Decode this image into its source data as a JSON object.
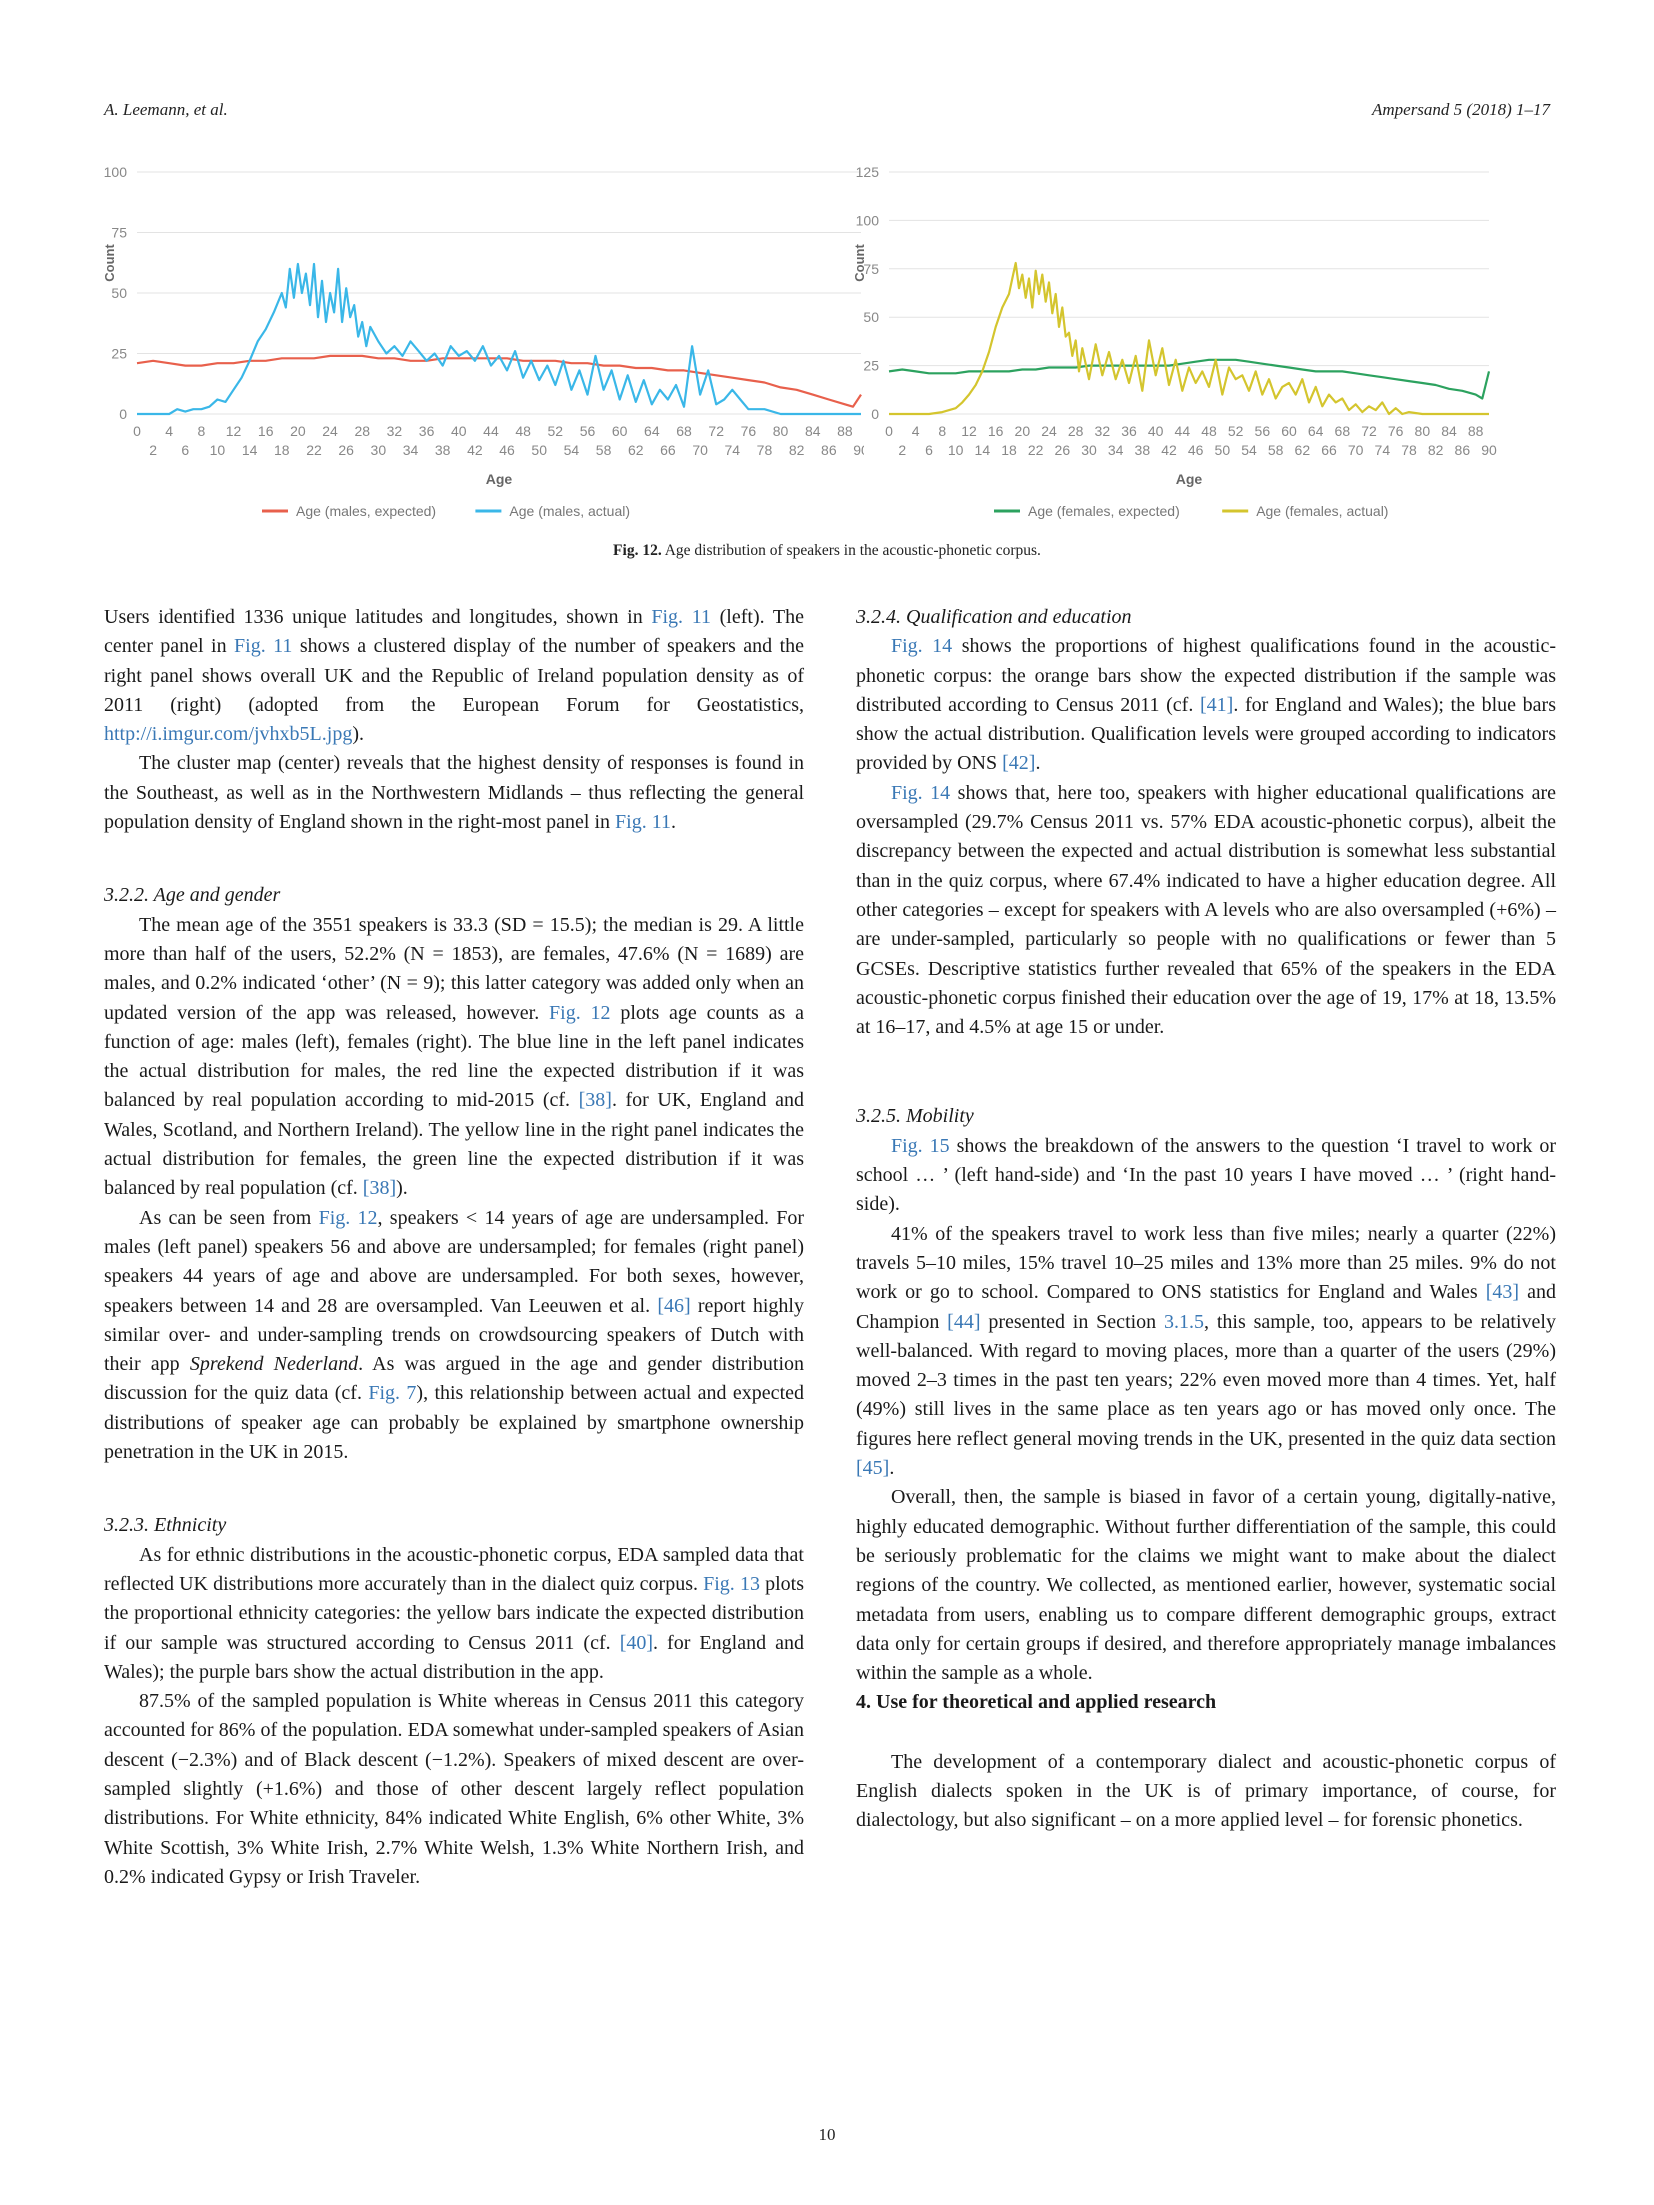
{
  "header": {
    "left": "A. Leemann, et al.",
    "right": "Ampersand 5 (2018) 1–17"
  },
  "chart_data": [
    {
      "type": "line",
      "xlabel": "Age",
      "ylabel": "Count",
      "xlim": [
        0,
        90
      ],
      "ylim": [
        0,
        100
      ],
      "yticks": [
        0,
        25,
        50,
        75,
        100
      ],
      "xticks_top": [
        "0",
        "4",
        "8",
        "12",
        "16",
        "20",
        "24",
        "28",
        "32",
        "36",
        "40",
        "44",
        "48",
        "52",
        "56",
        "60",
        "64",
        "68",
        "72",
        "76",
        "80",
        "84",
        "88"
      ],
      "xticks_bottom": [
        "2",
        "6",
        "10",
        "14",
        "18",
        "22",
        "26",
        "30",
        "34",
        "38",
        "42",
        "46",
        "50",
        "54",
        "58",
        "62",
        "66",
        "70",
        "74",
        "78",
        "82",
        "86",
        "90"
      ],
      "grid": true,
      "legend_position": "bottom",
      "series": [
        {
          "name": "Age (males, expected)",
          "color": "#e8604c",
          "x": [
            0,
            2,
            4,
            6,
            8,
            10,
            12,
            14,
            16,
            18,
            20,
            22,
            24,
            26,
            28,
            30,
            32,
            34,
            36,
            38,
            40,
            42,
            44,
            46,
            48,
            50,
            52,
            54,
            56,
            58,
            60,
            62,
            64,
            66,
            68,
            70,
            72,
            74,
            76,
            78,
            80,
            82,
            84,
            86,
            88,
            89,
            90
          ],
          "y": [
            21,
            22,
            21,
            20,
            20,
            21,
            21,
            22,
            22,
            23,
            23,
            23,
            24,
            24,
            24,
            23,
            23,
            22,
            22,
            23,
            23,
            23,
            23,
            23,
            22,
            22,
            22,
            21,
            21,
            20,
            20,
            19,
            19,
            18,
            18,
            17,
            16,
            15,
            14,
            13,
            11,
            10,
            8,
            6,
            4,
            3,
            8
          ]
        },
        {
          "name": "Age (males, actual)",
          "color": "#3ab7e8",
          "x": [
            0,
            4,
            5,
            6,
            7,
            8,
            9,
            10,
            11,
            12,
            13,
            14,
            15,
            16,
            17,
            18,
            18.5,
            19,
            19.5,
            20,
            20.5,
            21,
            21.5,
            22,
            22.5,
            23,
            23.5,
            24,
            24.5,
            25,
            25.5,
            26,
            26.5,
            27,
            27.5,
            28,
            28.5,
            29,
            30,
            31,
            32,
            33,
            34,
            35,
            36,
            37,
            38,
            39,
            40,
            41,
            42,
            43,
            44,
            45,
            46,
            47,
            48,
            49,
            50,
            51,
            52,
            53,
            54,
            55,
            56,
            57,
            58,
            59,
            60,
            61,
            62,
            63,
            64,
            65,
            66,
            67,
            68,
            69,
            70,
            71,
            72,
            73,
            74,
            75,
            76,
            78,
            80,
            82,
            84,
            86,
            88,
            90
          ],
          "y": [
            0,
            0,
            2,
            1,
            2,
            2,
            3,
            6,
            5,
            10,
            15,
            22,
            30,
            35,
            42,
            50,
            44,
            60,
            48,
            62,
            50,
            58,
            45,
            62,
            40,
            55,
            38,
            50,
            42,
            60,
            38,
            52,
            40,
            45,
            32,
            38,
            28,
            36,
            30,
            25,
            28,
            24,
            30,
            26,
            22,
            25,
            20,
            28,
            24,
            26,
            22,
            28,
            20,
            24,
            18,
            26,
            15,
            22,
            14,
            20,
            12,
            22,
            10,
            18,
            8,
            24,
            10,
            18,
            6,
            16,
            5,
            14,
            4,
            10,
            6,
            12,
            3,
            28,
            8,
            18,
            4,
            6,
            10,
            6,
            2,
            2,
            0,
            0,
            0,
            0,
            0,
            0
          ]
        }
      ]
    },
    {
      "type": "line",
      "xlabel": "Age",
      "ylabel": "Count",
      "xlim": [
        0,
        90
      ],
      "ylim": [
        0,
        125
      ],
      "yticks": [
        0,
        25,
        50,
        75,
        100,
        125
      ],
      "xticks_top": [
        "0",
        "4",
        "8",
        "12",
        "16",
        "20",
        "24",
        "28",
        "32",
        "36",
        "40",
        "44",
        "48",
        "52",
        "56",
        "60",
        "64",
        "68",
        "72",
        "76",
        "80",
        "84",
        "88"
      ],
      "xticks_bottom": [
        "2",
        "6",
        "10",
        "14",
        "18",
        "22",
        "26",
        "30",
        "34",
        "38",
        "42",
        "46",
        "50",
        "54",
        "58",
        "62",
        "66",
        "70",
        "74",
        "78",
        "82",
        "86",
        "90"
      ],
      "grid": true,
      "legend_position": "bottom",
      "series": [
        {
          "name": "Age (females, expected)",
          "color": "#2ca25f",
          "x": [
            0,
            2,
            4,
            6,
            8,
            10,
            12,
            14,
            16,
            18,
            20,
            22,
            24,
            26,
            28,
            30,
            32,
            34,
            36,
            38,
            40,
            42,
            44,
            46,
            48,
            50,
            52,
            54,
            56,
            58,
            60,
            62,
            64,
            66,
            68,
            70,
            72,
            74,
            76,
            78,
            80,
            82,
            84,
            86,
            88,
            89,
            90
          ],
          "y": [
            22,
            23,
            22,
            21,
            21,
            21,
            22,
            22,
            22,
            22,
            23,
            23,
            24,
            24,
            24,
            25,
            25,
            25,
            25,
            25,
            25,
            25,
            26,
            27,
            28,
            28,
            28,
            27,
            26,
            25,
            24,
            23,
            22,
            22,
            22,
            21,
            20,
            19,
            18,
            17,
            16,
            15,
            13,
            12,
            10,
            8,
            22
          ]
        },
        {
          "name": "Age (females, actual)",
          "color": "#d4c52e",
          "x": [
            0,
            4,
            6,
            8,
            10,
            11,
            12,
            13,
            14,
            15,
            16,
            17,
            18,
            18.5,
            19,
            19.5,
            20,
            20.5,
            21,
            21.5,
            22,
            22.5,
            23,
            23.5,
            24,
            24.5,
            25,
            25.5,
            26,
            26.5,
            27,
            27.5,
            28,
            28.5,
            29,
            30,
            31,
            32,
            33,
            34,
            35,
            36,
            37,
            38,
            39,
            40,
            41,
            42,
            43,
            44,
            45,
            46,
            47,
            48,
            49,
            50,
            51,
            52,
            53,
            54,
            55,
            56,
            57,
            58,
            59,
            60,
            61,
            62,
            63,
            64,
            65,
            66,
            67,
            68,
            69,
            70,
            71,
            72,
            73,
            74,
            75,
            76,
            77,
            78,
            80,
            82,
            84,
            86,
            88,
            90
          ],
          "y": [
            0,
            0,
            0,
            1,
            3,
            6,
            10,
            15,
            22,
            32,
            45,
            55,
            62,
            70,
            78,
            65,
            72,
            60,
            70,
            55,
            74,
            62,
            72,
            58,
            68,
            52,
            62,
            45,
            55,
            40,
            42,
            30,
            38,
            22,
            34,
            18,
            36,
            20,
            32,
            18,
            28,
            16,
            30,
            12,
            38,
            20,
            34,
            15,
            28,
            12,
            24,
            16,
            22,
            14,
            28,
            10,
            24,
            18,
            20,
            12,
            22,
            10,
            18,
            8,
            14,
            16,
            10,
            18,
            6,
            14,
            4,
            10,
            6,
            8,
            2,
            5,
            1,
            4,
            2,
            6,
            0,
            3,
            0,
            1,
            0,
            0,
            0,
            0,
            0,
            0
          ]
        }
      ]
    }
  ],
  "figure": {
    "caption_label": "Fig. 12.",
    "caption_text": " Age distribution of speakers in the acoustic-phonetic corpus."
  },
  "left_column": {
    "p1": [
      "Users identified 1336 unique latitudes and longitudes, shown in ",
      "Fig. 11",
      " (left). The center panel in ",
      "Fig. 11",
      " shows a clustered display of the number of speakers and the right panel shows overall UK and the Republic of Ireland population density as of 2011 (right) (adopted from the European Forum for Geostatistics, ",
      "http://i.imgur.com/jvhxb5L.jpg",
      ")."
    ],
    "p2": [
      "The cluster map (center) reveals that the highest density of responses is found in the Southeast, as well as in the Northwestern Midlands – thus reflecting the general population density of England shown in the right-most panel in ",
      "Fig. 11",
      "."
    ],
    "h_age": "3.2.2. Age and gender",
    "p3": [
      "The mean age of the 3551 speakers is 33.3 (SD = 15.5); the median is 29. A little more than half of the users, 52.2% (N = 1853), are females, 47.6% (N = 1689) are males, and 0.2% indicated ‘other’ (N = 9); this latter category was added only when an updated version of the app was released, however. ",
      "Fig. 12",
      " plots age counts as a function of age: males (left), females (right). The blue line in the left panel indicates the actual distribution for males, the red line the expected distribution if it was balanced by real population according to mid-2015 (cf. ",
      "[38]",
      ". for UK, England and Wales, Scotland, and Northern Ireland). The yellow line in the right panel indicates the actual distribution for females, the green line the expected distribution if it was balanced by real population (cf. ",
      "[38]",
      ")."
    ],
    "p4": [
      "As can be seen from ",
      "Fig. 12",
      ", speakers < 14 years of age are undersampled. For males (left panel) speakers 56 and above are undersampled; for females (right panel) speakers 44 years of age and above are undersampled. For both sexes, however, speakers between 14 and 28 are oversampled. Van Leeuwen et al. ",
      "[46]",
      " report highly similar over- and under-sampling trends on crowdsourcing speakers of Dutch with their app ",
      "Sprekend Nederland",
      ". As was argued in the age and gender distribution discussion for the quiz data (cf. ",
      "Fig. 7",
      "), this relationship between actual and expected distributions of speaker age can probably be explained by smartphone ownership penetration in the UK in 2015."
    ],
    "h_eth": "3.2.3. Ethnicity",
    "p5": [
      "As for ethnic distributions in the acoustic-phonetic corpus, EDA sampled data that reflected UK distributions more accurately than in the dialect quiz corpus. ",
      "Fig. 13",
      " plots the proportional ethnicity categories: the yellow bars indicate the expected distribution if our sample was structured according to Census 2011 (cf. ",
      "[40]",
      ". for England and Wales); the purple bars show the actual distribution in the app."
    ],
    "p6": "87.5% of the sampled population is White whereas in Census 2011 this category accounted for 86% of the population. EDA somewhat under-sampled speakers of Asian descent (−2.3%) and of Black descent (−1.2%). Speakers of mixed descent are over-sampled slightly (+1.6%) and those of other descent largely reflect population distributions. For White ethnicity, 84% indicated White English, 6% other White, 3% White Scottish, 3% White Irish, 2.7% White Welsh, 1.3% White Northern Irish, and 0.2% indicated Gypsy or Irish Traveler."
  },
  "right_column": {
    "h_qual": "3.2.4. Qualification and education",
    "p1": [
      "Fig. 14",
      " shows the proportions of highest qualifications found in the acoustic-phonetic corpus: the orange bars show the expected distribution if the sample was distributed according to Census 2011 (cf. ",
      "[41]",
      ". for England and Wales); the blue bars show the actual distribution. Qualification levels were grouped according to indicators provided by ONS ",
      "[42]",
      "."
    ],
    "p2": [
      "Fig. 14",
      " shows that, here too, speakers with higher educational qualifications are oversampled (29.7% Census 2011 vs. 57% EDA acoustic-phonetic corpus), albeit the discrepancy between the expected and actual distribution is somewhat less substantial than in the quiz corpus, where 67.4% indicated to have a higher education degree. All other categories – except for speakers with A levels who are also oversampled (+6%) – are under-sampled, particularly so people with no qualifications or fewer than 5 GCSEs. Descriptive statistics further revealed that 65% of the speakers in the EDA acoustic-phonetic corpus finished their education over the age of 19, 17% at 18, 13.5% at 16–17, and 4.5% at age 15 or under."
    ],
    "h_mob": "3.2.5. Mobility",
    "p3": [
      "Fig. 15",
      " shows the breakdown of the answers to the question ‘I travel to work or school … ’ (left hand-side) and ‘In the past 10 years I have moved … ’ (right hand-side)."
    ],
    "p4": [
      "41% of the speakers travel to work less than five miles; nearly a quarter (22%) travels 5–10 miles, 15% travel 10–25 miles and 13% more than 25 miles. 9% do not work or go to school. Compared to ONS statistics for England and Wales ",
      "[43]",
      " and Champion ",
      "[44]",
      " presented in Section ",
      "3.1.5",
      ", this sample, too, appears to be relatively well-balanced. With regard to moving places, more than a quarter of the users (29%) moved 2–3 times in the past ten years; 22% even moved more than 4 times. Yet, half (49%) still lives in the same place as ten years ago or has moved only once. The figures here reflect general moving trends in the UK, presented in the quiz data section ",
      "[45]",
      "."
    ],
    "p5": "Overall, then, the sample is biased in favor of a certain young, digitally-native, highly educated demographic. Without further differentiation of the sample, this could be seriously problematic for the claims we might want to make about the dialect regions of the country. We collected, as mentioned earlier, however, systematic social metadata from users, enabling us to compare different demographic groups, extract data only for certain groups if desired, and therefore appropriately manage imbalances within the sample as a whole.",
    "h4": "4. Use for theoretical and applied research",
    "p6": "The development of a contemporary dialect and acoustic-phonetic corpus of English dialects spoken in the UK is of primary importance, of course, for dialectology, but also significant – on a more applied level – for forensic phonetics."
  },
  "page_number": "10"
}
